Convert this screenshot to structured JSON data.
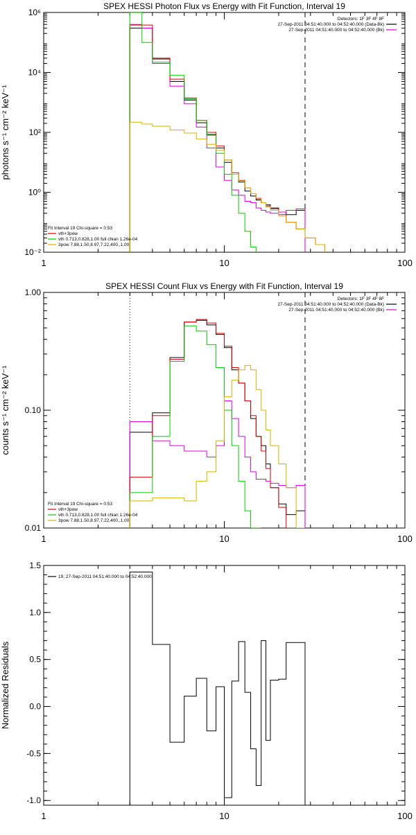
{
  "chart_data": [
    {
      "type": "line",
      "title": "SPEX HESSI Photon Flux vs Energy with Fit Function, Interval 19",
      "ylabel": "photons s⁻¹ cm⁻² keV⁻¹",
      "xlabel": "",
      "xscale": "log",
      "yscale": "log",
      "xlim": [
        1,
        100
      ],
      "ylim": [
        0.01,
        1000000
      ],
      "x_ticks": [
        {
          "v": 1,
          "label": "1"
        },
        {
          "v": 10,
          "label": "10"
        },
        {
          "v": 100,
          "label": "100"
        }
      ],
      "y_ticks": [
        {
          "v": 0.01,
          "label": "10⁻²"
        },
        {
          "v": 1,
          "label": "10⁰"
        },
        {
          "v": 100,
          "label": "10²"
        },
        {
          "v": 10000,
          "label": "10⁴"
        },
        {
          "v": 1000000,
          "label": "10⁶"
        }
      ],
      "vlines": [
        {
          "x": 3.0,
          "style": "dotted",
          "color": "#d9b000"
        },
        {
          "x": 28.0,
          "style": "dashed",
          "color": "#000000"
        }
      ],
      "header_lines": [
        "Detectors: 1F 3F 4F 8F",
        "27-Sep-2011 04:51:40.000 to 04:52:40.000 (Data-Bk)",
        "27-Sep-2011 04:51:40.000 to 04:52:40.000 (Bk)"
      ],
      "header_colors": [
        "",
        "#000000",
        "#dd00dd"
      ],
      "legend": {
        "position": "bottom-left",
        "lines": [
          "Fit Interval 19   Chi-square = 0.53",
          "vth+3pow",
          "vth 0.713,0.828,1.00  full chian 1.26e-04",
          "3pow 7.88,1.50,8.97,7.22,400.,1.00"
        ],
        "colors": [
          "",
          "#dd0000",
          "#00cc00",
          "#d9b000"
        ]
      },
      "edges": [
        3.0,
        3.5,
        4.0,
        5.0,
        6.0,
        7.0,
        8.0,
        9.0,
        10.0,
        11.0,
        12.0,
        13.0,
        14.0,
        15.0,
        16.0,
        17.0,
        18.0,
        20.0,
        22.0,
        25.0,
        28.0,
        32.0,
        36.0
      ],
      "series": [
        {
          "name": "Data-Bk",
          "color": "#000000",
          "values": [
            300000,
            300000,
            28000,
            5000,
            1200,
            210,
            85,
            30,
            10,
            4,
            2.2,
            1.1,
            0.75,
            0.55,
            0.45,
            0.38,
            0.3,
            0.22,
            0.18,
            0.25,
            null,
            null
          ]
        },
        {
          "name": "Bk",
          "color": "#dd00dd",
          "values": [
            400000,
            300000,
            20000,
            3500,
            900,
            150,
            30,
            7,
            2.5,
            1.2,
            0.8,
            0.5,
            0.45,
            0.3,
            0.25,
            0.22,
            0.2,
            0.22,
            0.25,
            0.28,
            null,
            null
          ]
        },
        {
          "name": "vth+3pow",
          "color": "#dd0000",
          "values": [
            380000,
            380000,
            30000,
            6000,
            1400,
            250,
            100,
            35,
            12,
            4.5,
            2.5,
            1.4,
            0.9,
            0.6,
            0.45,
            0.35,
            0.28,
            0.18,
            0.1,
            0.06,
            0.03,
            0.018
          ]
        },
        {
          "name": "vth",
          "color": "#00cc00",
          "values": [
            1000000,
            100000,
            22000,
            8000,
            1300,
            250,
            80,
            20,
            4,
            0.8,
            0.2,
            0.05,
            0.015,
            null,
            null,
            null,
            null,
            null,
            null,
            null,
            null,
            null
          ]
        },
        {
          "name": "3pow",
          "color": "#d9b000",
          "values": [
            220,
            190,
            160,
            120,
            95,
            60,
            40,
            25,
            12,
            4,
            2.4,
            1.4,
            0.9,
            0.65,
            0.45,
            0.32,
            0.25,
            0.16,
            0.1,
            0.06,
            0.03,
            0.018
          ]
        }
      ]
    },
    {
      "type": "line",
      "title": "SPEX HESSI Count Flux vs Energy with Fit Function, Interval 19",
      "ylabel": "counts s⁻¹ cm⁻² keV⁻¹",
      "xlabel": "",
      "xscale": "log",
      "yscale": "log",
      "xlim": [
        1,
        100
      ],
      "ylim": [
        0.01,
        1.0
      ],
      "x_ticks": [
        {
          "v": 1,
          "label": "1"
        },
        {
          "v": 10,
          "label": "10"
        },
        {
          "v": 100,
          "label": "100"
        }
      ],
      "y_ticks": [
        {
          "v": 0.01,
          "label": "0.01"
        },
        {
          "v": 0.1,
          "label": "0.10"
        },
        {
          "v": 1.0,
          "label": "1.00"
        }
      ],
      "vlines": [
        {
          "x": 3.0,
          "style": "dotted",
          "color": "#000000"
        },
        {
          "x": 28.0,
          "style": "dashed",
          "color": "#000000"
        }
      ],
      "header_lines": [
        "Detectors: 1F 3F 4F 8F",
        "27-Sep-2011 04:51:40.000 to 04:52:40.000 (Data-Bk)",
        "27-Sep-2011 04:51:40.000 to 04:52:40.000 (Bk)"
      ],
      "header_colors": [
        "",
        "#000000",
        "#dd00dd"
      ],
      "legend": {
        "position": "bottom-left",
        "lines": [
          "Fit Interval 19   Chi-square = 0.53",
          "vth+3pow",
          "vth 0.713,0.828,1.00  full chian 1.26e-04",
          "3pow 7.88,1.50,8.97,7.22,400.,1.00"
        ],
        "colors": [
          "",
          "#dd0000",
          "#00cc00",
          "#d9b000"
        ]
      },
      "edges": [
        3.0,
        4.0,
        5.0,
        6.0,
        7.0,
        8.0,
        9.0,
        10.0,
        11.0,
        12.0,
        13.0,
        14.0,
        15.0,
        16.0,
        17.0,
        18.0,
        20.0,
        22.0,
        25.0,
        28.0
      ],
      "series": [
        {
          "name": "Data-Bk",
          "color": "#000000",
          "values": [
            0.065,
            0.095,
            0.28,
            0.56,
            0.58,
            0.53,
            0.44,
            0.34,
            0.22,
            0.17,
            0.12,
            0.085,
            0.06,
            0.05,
            0.035,
            0.022,
            0.016,
            0.013,
            0.014
          ]
        },
        {
          "name": "Bk",
          "color": "#dd00dd",
          "values": [
            0.08,
            0.055,
            0.05,
            0.045,
            0.045,
            0.04,
            0.05,
            0.12,
            0.085,
            0.06,
            0.04,
            0.03,
            0.026,
            0.026,
            0.025,
            0.024,
            0.023,
            0.022,
            0.023
          ]
        },
        {
          "name": "vth+3pow",
          "color": "#dd0000",
          "values": [
            0.027,
            0.09,
            0.27,
            0.56,
            0.59,
            0.55,
            0.45,
            0.35,
            0.23,
            0.17,
            0.12,
            0.09,
            0.06,
            0.045,
            0.032,
            0.022,
            0.015,
            0.01,
            0.01
          ]
        },
        {
          "name": "vth",
          "color": "#00cc00",
          "values": [
            0.02,
            0.06,
            0.26,
            0.52,
            0.47,
            0.36,
            0.23,
            0.1,
            0.05,
            0.025,
            0.014,
            0.01,
            0.008,
            null,
            null,
            null,
            null,
            null,
            null
          ]
        },
        {
          "name": "3pow",
          "color": "#d9b000",
          "values": [
            0.017,
            0.018,
            0.018,
            0.017,
            0.025,
            0.03,
            0.055,
            0.13,
            0.18,
            0.22,
            0.24,
            0.22,
            0.15,
            0.1,
            0.068,
            0.05,
            0.035,
            0.022,
            0.01
          ]
        }
      ]
    },
    {
      "type": "line",
      "title": "",
      "ylabel": "Normalized Residuals",
      "xlabel": "",
      "xscale": "log",
      "yscale": "linear",
      "xlim": [
        1,
        100
      ],
      "ylim": [
        -1.05,
        1.5
      ],
      "x_ticks": [
        {
          "v": 1,
          "label": "1"
        },
        {
          "v": 10,
          "label": "10"
        },
        {
          "v": 100,
          "label": "100"
        }
      ],
      "y_ticks": [
        {
          "v": -1.0,
          "label": "-1.0"
        },
        {
          "v": -0.5,
          "label": "-0.5"
        },
        {
          "v": 0.0,
          "label": "0.0"
        },
        {
          "v": 0.5,
          "label": "0.5"
        },
        {
          "v": 1.0,
          "label": "1.0"
        },
        {
          "v": 1.5,
          "label": "1.5"
        }
      ],
      "legend": {
        "position": "top-left",
        "lines": [
          "19, 27-Sep-2011 04:51:40.000 to 04:52:40.000"
        ],
        "colors": [
          "#000000"
        ]
      },
      "edges": [
        3.0,
        4.0,
        5.0,
        6.0,
        7.0,
        8.0,
        9.0,
        10.0,
        11.0,
        12.0,
        13.0,
        14.0,
        15.0,
        16.0,
        17.0,
        18.0,
        20.0,
        22.0,
        25.0,
        28.0
      ],
      "series": [
        {
          "name": "",
          "color": "#000000",
          "values": [
            1.43,
            0.66,
            -0.38,
            0.11,
            0.3,
            -0.26,
            0.21,
            -0.97,
            0.27,
            0.69,
            0.15,
            -0.45,
            -0.84,
            0.7,
            -0.36,
            0.28,
            0.29,
            0.68,
            0.68
          ]
        }
      ]
    }
  ]
}
